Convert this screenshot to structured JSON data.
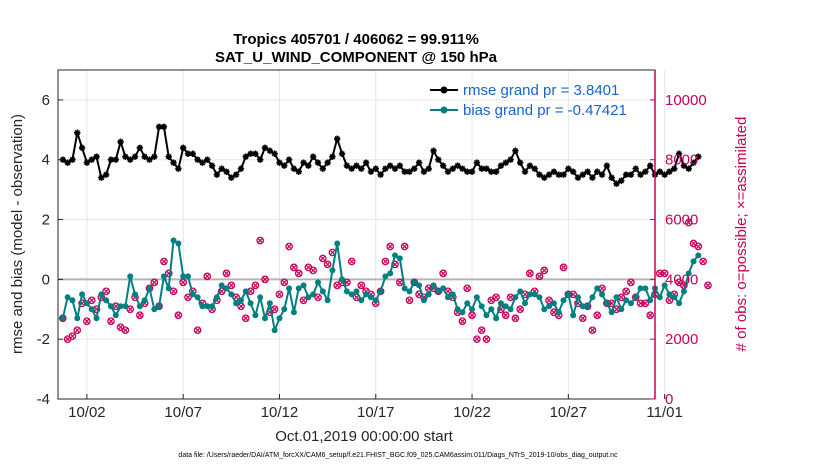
{
  "chart_data": {
    "type": "line",
    "title": "Tropics 405701 / 406062 = 99.911%",
    "subtitle": "SAT_U_WIND_COMPONENT @ 150 hPa",
    "xlabel": "Oct.01,2019 00:00:00 start",
    "ylabel": "rmse and bias (model - observation)",
    "ylabel_right": "# of obs: o=possible; ×=assimilated",
    "footnote": "data file: /Users/raeder/DAI/ATM_forcXX/CAM6_setup/f.e21.FHIST_BGC.f09_025.CAM6assim.011/Diags_NTrS_2019-10/obs_diag_output.nc",
    "xlim": [
      0.5,
      31.5
    ],
    "ylim": [
      -4,
      7
    ],
    "ylim_right": [
      0,
      11000
    ],
    "x_ticks": [
      2,
      7,
      12,
      17,
      22,
      27,
      32
    ],
    "x_tick_labels": [
      "10/02",
      "10/07",
      "10/12",
      "10/17",
      "10/22",
      "10/27",
      "11/01"
    ],
    "y_ticks": [
      -4,
      -2,
      0,
      2,
      4,
      6
    ],
    "y_tick_labels": [
      "-4",
      "-2",
      "0",
      "2",
      "4",
      "6"
    ],
    "y_ticks_right": [
      0,
      2000,
      4000,
      6000,
      8000,
      10000
    ],
    "y_tick_labels_right": [
      "0",
      "2000",
      "4000",
      "6000",
      "8000",
      "10000"
    ],
    "grid": true,
    "legend_position": "top-right",
    "x_step_days": 0.25,
    "x_start": 0.75,
    "series": [
      {
        "name": "rmse grand pr = 3.8401",
        "axis": "left",
        "color": "#000000",
        "marker": "star",
        "values": [
          4.0,
          3.9,
          4.0,
          4.9,
          4.4,
          3.9,
          4.0,
          4.1,
          3.4,
          3.5,
          4.0,
          4.0,
          4.6,
          4.1,
          4.0,
          4.1,
          4.4,
          4.1,
          4.0,
          4.1,
          5.1,
          5.1,
          4.1,
          3.9,
          3.7,
          4.4,
          4.2,
          4.2,
          4.0,
          3.9,
          4.0,
          3.8,
          3.5,
          3.7,
          3.6,
          3.4,
          3.5,
          3.7,
          4.1,
          4.2,
          4.2,
          4.0,
          4.4,
          4.3,
          4.2,
          3.9,
          3.8,
          4.0,
          3.7,
          3.6,
          3.9,
          3.8,
          4.1,
          3.9,
          3.7,
          3.9,
          4.1,
          4.7,
          4.2,
          3.8,
          3.7,
          3.8,
          3.7,
          3.9,
          3.6,
          3.7,
          3.5,
          3.7,
          3.8,
          3.7,
          3.8,
          3.6,
          3.6,
          3.7,
          3.9,
          3.6,
          3.7,
          4.3,
          4.0,
          3.8,
          3.6,
          3.7,
          3.8,
          3.7,
          3.6,
          3.6,
          3.9,
          3.7,
          3.7,
          3.6,
          3.6,
          3.8,
          3.9,
          4.0,
          4.3,
          3.9,
          3.6,
          3.8,
          3.7,
          3.5,
          3.4,
          3.5,
          3.6,
          3.5,
          3.5,
          3.7,
          3.6,
          3.4,
          3.5,
          3.6,
          3.4,
          3.6,
          3.5,
          3.8,
          3.4,
          3.2,
          3.3,
          3.5,
          3.5,
          3.7,
          3.5,
          3.6,
          3.8,
          3.5,
          3.6,
          3.5,
          3.6,
          3.7,
          4.2,
          3.8,
          3.7,
          3.9,
          4.1
        ]
      },
      {
        "name": "bias grand pr = -0.47421",
        "axis": "left",
        "color": "#008080",
        "marker": "circle",
        "values": [
          -1.3,
          -0.6,
          -0.7,
          -1.3,
          -0.5,
          -0.8,
          -1.0,
          -1.3,
          -0.5,
          -0.7,
          -0.9,
          -1.2,
          -0.9,
          -0.9,
          0.1,
          -0.5,
          -0.9,
          -0.7,
          -0.3,
          -1.0,
          -0.9,
          0.1,
          -0.3,
          1.3,
          1.2,
          0.1,
          0.1,
          -0.5,
          -0.6,
          -0.9,
          -0.9,
          -0.9,
          -0.6,
          -0.2,
          -0.3,
          -0.5,
          -0.8,
          -0.7,
          -0.4,
          -0.8,
          -1.2,
          -0.6,
          -1.3,
          -0.8,
          -1.7,
          -1.3,
          -1.0,
          -0.3,
          -1.1,
          -0.3,
          -0.2,
          -0.6,
          -0.5,
          -0.1,
          -0.4,
          -0.7,
          0.3,
          1.2,
          0.0,
          -0.4,
          -0.5,
          -0.4,
          -0.7,
          -0.5,
          -0.6,
          -0.7,
          -0.4,
          0.1,
          0.2,
          0.8,
          0.7,
          -0.3,
          -0.4,
          -0.1,
          -0.2,
          -0.7,
          -0.5,
          -0.2,
          -0.4,
          -0.3,
          -0.6,
          -0.5,
          -1.0,
          -1.1,
          -0.8,
          -1.0,
          -0.6,
          -0.9,
          -1.2,
          -1.0,
          -1.3,
          -0.8,
          -0.9,
          -1.0,
          -0.6,
          -0.4,
          -0.8,
          -0.5,
          -0.5,
          -0.6,
          -1.0,
          -0.9,
          -0.8,
          -1.1,
          -0.7,
          -0.5,
          -1.2,
          -0.6,
          -0.9,
          -0.9,
          -0.6,
          -0.3,
          -0.5,
          -0.8,
          -1.1,
          -0.6,
          -1.0,
          -0.7,
          -0.8,
          -0.6,
          -0.3,
          -0.3,
          -0.7,
          -0.3,
          -0.6,
          -0.2,
          -0.5,
          -0.6,
          -0.8,
          -0.4,
          0.2,
          0.6,
          0.8
        ]
      },
      {
        "name": "obs possible",
        "axis": "right",
        "color": "#c8005a",
        "marker": "ring",
        "values": [
          2700,
          2000,
          2100,
          2300,
          3200,
          2600,
          3300,
          3000,
          3400,
          3600,
          2600,
          3100,
          2400,
          2300,
          3000,
          3400,
          2800,
          3200,
          3700,
          3900,
          3100,
          4600,
          4200,
          3600,
          2800,
          3900,
          3400,
          3600,
          2300,
          3200,
          4100,
          3000,
          3300,
          3600,
          4200,
          3800,
          3400,
          3100,
          2700,
          3600,
          3800,
          5300,
          4000,
          2900,
          3000,
          3500,
          3900,
          5100,
          4400,
          4200,
          3300,
          4400,
          4300,
          3400,
          4700,
          4500,
          4900,
          3800,
          3900,
          3900,
          4600,
          3400,
          3800,
          3600,
          3500,
          3200,
          3600,
          4600,
          5100,
          4500,
          3900,
          5100,
          3300,
          3900,
          3500,
          3400,
          3700,
          3700,
          3600,
          4200,
          3600,
          3400,
          2900,
          2600,
          3700,
          2800,
          2000,
          2300,
          2000,
          3300,
          3400,
          3000,
          2800,
          3400,
          2700,
          3000,
          3500,
          4200,
          3600,
          4100,
          4300,
          3300,
          2900,
          2800,
          4400,
          3500,
          3500,
          3200,
          2700,
          3100,
          2300,
          2800,
          3700,
          3200,
          3200,
          3000,
          3400,
          3600,
          3900,
          3400,
          3200,
          3200,
          2800,
          3500,
          4200,
          4200,
          3300,
          3500,
          3900,
          3800,
          5900,
          5200,
          5100,
          4600,
          3800
        ]
      },
      {
        "name": "obs assimilated",
        "axis": "right",
        "color": "#c8005a",
        "marker": "x",
        "values": [
          2700,
          2000,
          2100,
          2300,
          3200,
          2600,
          3300,
          3000,
          3400,
          3600,
          2600,
          3100,
          2400,
          2300,
          3000,
          3400,
          2800,
          3200,
          3700,
          3900,
          3100,
          4600,
          4200,
          3600,
          2800,
          3900,
          3400,
          3600,
          2300,
          3200,
          4100,
          3000,
          3300,
          3600,
          4200,
          3800,
          3400,
          3100,
          2700,
          3600,
          3800,
          5300,
          4000,
          2900,
          3000,
          3500,
          3900,
          5100,
          4400,
          4200,
          3300,
          4400,
          4300,
          3400,
          4700,
          4500,
          4900,
          3800,
          3900,
          3900,
          4600,
          3400,
          3800,
          3600,
          3500,
          3200,
          3600,
          4600,
          5100,
          4500,
          3900,
          5100,
          3300,
          3900,
          3500,
          3400,
          3700,
          3700,
          3600,
          4200,
          3600,
          3400,
          2900,
          2600,
          3700,
          2800,
          2000,
          2300,
          2000,
          3300,
          3400,
          3000,
          2800,
          3400,
          2700,
          3000,
          3500,
          4200,
          3600,
          4100,
          4300,
          3300,
          2900,
          2800,
          4400,
          3500,
          3500,
          3200,
          2700,
          3100,
          2300,
          2800,
          3700,
          3200,
          3200,
          3000,
          3400,
          3600,
          3900,
          3400,
          3200,
          3200,
          2800,
          3500,
          4200,
          4200,
          3300,
          3500,
          3900,
          3800,
          5900,
          5200,
          5100,
          4600,
          3800
        ]
      }
    ]
  }
}
